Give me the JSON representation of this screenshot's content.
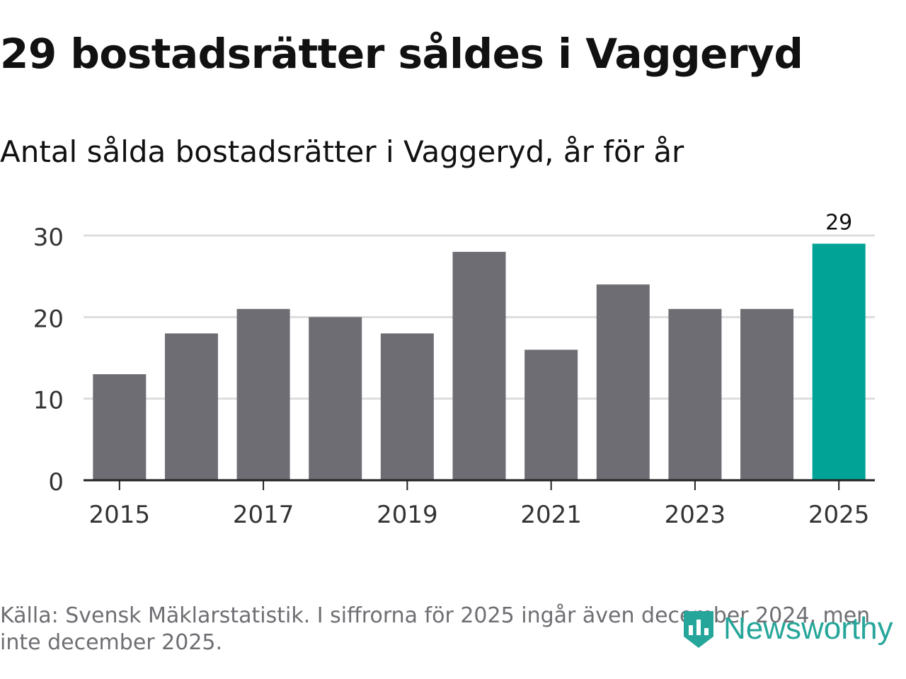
{
  "title": "29 bostadsrätter såldes i Vaggeryd",
  "subtitle": "Antal sålda bostadsrätter i Vaggeryd, år för år",
  "source": "Källa: Svensk Mäklarstatistik. I siffrorna för 2025 ingår även december 2024, men inte december 2025.",
  "logo": {
    "text": "Newsworthy",
    "icon": "newsworthy-logo-icon"
  },
  "colors": {
    "bar": "#6e6d73",
    "highlight": "#00a396",
    "grid": "#dddddd",
    "axis": "#222222",
    "text": "#333333"
  },
  "chart_data": {
    "type": "bar",
    "categories": [
      "2015",
      "2016",
      "2017",
      "2018",
      "2019",
      "2020",
      "2021",
      "2022",
      "2023",
      "2024",
      "2025"
    ],
    "values": [
      13,
      18,
      21,
      20,
      18,
      28,
      16,
      24,
      21,
      21,
      29
    ],
    "x_tick_labels": [
      "2015",
      "2017",
      "2019",
      "2021",
      "2023",
      "2025"
    ],
    "y_ticks": [
      0,
      10,
      20,
      30
    ],
    "ylim": [
      0,
      30
    ],
    "highlight_category": "2025",
    "data_labels": [
      {
        "category": "2025",
        "label": "29"
      }
    ],
    "title": "Antal sålda bostadsrätter i Vaggeryd, år för år",
    "xlabel": "",
    "ylabel": "",
    "grid": true
  }
}
